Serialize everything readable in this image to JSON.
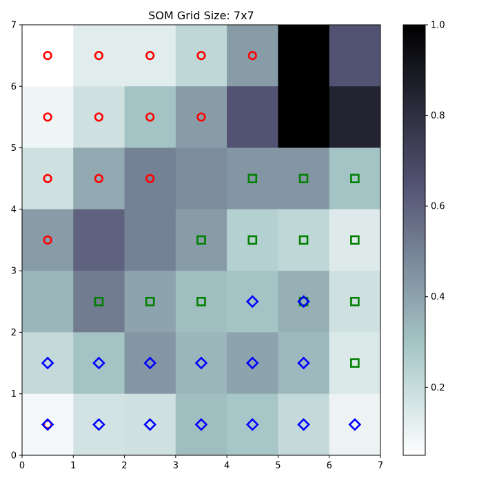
{
  "chart_data": {
    "type": "heatmap",
    "title": "SOM Grid Size: 7x7",
    "xlabel": "",
    "ylabel": "",
    "xlim": [
      0,
      7
    ],
    "ylim": [
      0,
      7
    ],
    "x_ticks": [
      "0",
      "1",
      "2",
      "3",
      "4",
      "5",
      "6",
      "7"
    ],
    "y_ticks": [
      "0",
      "1",
      "2",
      "3",
      "4",
      "5",
      "6",
      "7"
    ],
    "colormap": "bone_r",
    "colorbar": {
      "min": 0.05,
      "max": 1.0,
      "ticks": [
        "0.2",
        "0.4",
        "0.6",
        "0.8",
        "1.0"
      ],
      "tick_values": [
        0.2,
        0.4,
        0.6,
        0.8,
        1.0
      ]
    },
    "grid": false,
    "rows_top_to_bottom": [
      [
        0.05,
        0.13,
        0.13,
        0.22,
        0.42,
        1.0,
        0.65
      ],
      [
        0.09,
        0.18,
        0.3,
        0.42,
        0.65,
        1.0,
        0.85
      ],
      [
        0.18,
        0.38,
        0.5,
        0.47,
        0.44,
        0.44,
        0.3
      ],
      [
        0.42,
        0.6,
        0.5,
        0.42,
        0.25,
        0.22,
        0.14
      ],
      [
        0.34,
        0.52,
        0.4,
        0.32,
        0.3,
        0.36,
        0.18
      ],
      [
        0.21,
        0.3,
        0.44,
        0.34,
        0.4,
        0.33,
        0.15
      ],
      [
        0.08,
        0.17,
        0.18,
        0.32,
        0.29,
        0.21,
        0.1
      ]
    ],
    "markers": [
      {
        "shape": "circle",
        "color": "#ff0000",
        "points": [
          [
            0.5,
            6.5
          ],
          [
            1.5,
            6.5
          ],
          [
            2.5,
            6.5
          ],
          [
            3.5,
            6.5
          ],
          [
            4.5,
            6.5
          ],
          [
            0.5,
            5.5
          ],
          [
            1.5,
            5.5
          ],
          [
            2.5,
            5.5
          ],
          [
            3.5,
            5.5
          ],
          [
            0.5,
            4.5
          ],
          [
            1.5,
            4.5
          ],
          [
            2.5,
            4.5
          ],
          [
            0.5,
            3.5
          ],
          [
            0.5,
            0.5
          ]
        ]
      },
      {
        "shape": "square",
        "color": "#008000",
        "points": [
          [
            4.5,
            4.5
          ],
          [
            5.5,
            4.5
          ],
          [
            6.5,
            4.5
          ],
          [
            3.5,
            3.5
          ],
          [
            4.5,
            3.5
          ],
          [
            5.5,
            3.5
          ],
          [
            6.5,
            3.5
          ],
          [
            1.5,
            2.5
          ],
          [
            2.5,
            2.5
          ],
          [
            3.5,
            2.5
          ],
          [
            6.5,
            2.5
          ],
          [
            6.5,
            1.5
          ],
          [
            5.5,
            2.5
          ]
        ]
      },
      {
        "shape": "diamond",
        "color": "#0000ff",
        "points": [
          [
            4.5,
            2.5
          ],
          [
            5.5,
            2.5
          ],
          [
            0.5,
            1.5
          ],
          [
            1.5,
            1.5
          ],
          [
            2.5,
            1.5
          ],
          [
            3.5,
            1.5
          ],
          [
            4.5,
            1.5
          ],
          [
            5.5,
            1.5
          ],
          [
            0.5,
            0.5
          ],
          [
            1.5,
            0.5
          ],
          [
            2.5,
            0.5
          ],
          [
            3.5,
            0.5
          ],
          [
            4.5,
            0.5
          ],
          [
            5.5,
            0.5
          ],
          [
            6.5,
            0.5
          ]
        ]
      }
    ]
  }
}
